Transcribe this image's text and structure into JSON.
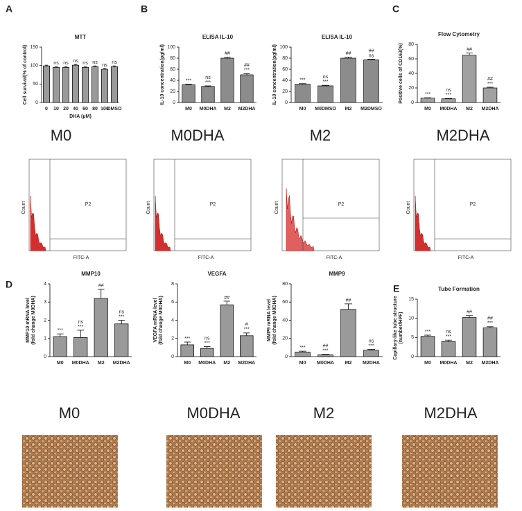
{
  "panels": [
    "A",
    "B",
    "C",
    "D",
    "E"
  ],
  "flow_labels": [
    "M0",
    "M0DHA",
    "M2",
    "M2DHA"
  ],
  "flow_axis": {
    "gate": "P2",
    "x_label": "FITC-A",
    "y_label": "Count"
  },
  "image_labels": [
    "M0",
    "M0DHA",
    "M2",
    "M2DHA"
  ],
  "chart_data": [
    {
      "type": "bar",
      "title": "MTT",
      "y_label": [
        "Cell survival(% of control)"
      ],
      "x_label": "DHA (μM)",
      "categories": [
        "0",
        "10",
        "20",
        "40",
        "60",
        "80",
        "100",
        "DMSO"
      ],
      "values": [
        99,
        95,
        95,
        101,
        95,
        97,
        90,
        97
      ],
      "errors": [
        2,
        2,
        2,
        2,
        2,
        2,
        2,
        2
      ],
      "annotations": [
        null,
        [
          "ns"
        ],
        [
          "ns"
        ],
        [
          "ns"
        ],
        [
          "ns"
        ],
        [
          "ns"
        ],
        [
          "ns"
        ],
        [
          "ns"
        ]
      ],
      "color": "#9a9a9a",
      "ylim": [
        0,
        150
      ],
      "yticks": [
        0,
        50,
        100,
        150
      ]
    },
    {
      "type": "bar",
      "title": "ELISA IL-10",
      "y_label": [
        "IL-10 concentration(pg/ml)"
      ],
      "categories": [
        "M0",
        "M0DHA",
        "M2",
        "M2DHA"
      ],
      "values": [
        32,
        29,
        80,
        50
      ],
      "errors": [
        1,
        1,
        2,
        2
      ],
      "annotations": [
        [
          "***"
        ],
        [
          "ns",
          "***"
        ],
        [
          "##"
        ],
        [
          "##",
          "***"
        ]
      ],
      "color": "#8c8c8c",
      "ylim": [
        0,
        100
      ],
      "yticks": [
        0,
        20,
        40,
        60,
        80,
        100
      ]
    },
    {
      "type": "bar",
      "title": "ELISA  IL-10",
      "y_label": [
        "IL-10 concentration(pg/ml)"
      ],
      "categories": [
        "M0",
        "M0DMSO",
        "M2",
        "M2DMSO"
      ],
      "values": [
        33,
        30,
        80,
        77
      ],
      "errors": [
        1,
        1,
        2,
        1
      ],
      "annotations": [
        [
          "***"
        ],
        [
          "ns",
          "***"
        ],
        [
          "##"
        ],
        [
          "##",
          "ns"
        ]
      ],
      "color": "#8c8c8c",
      "ylim": [
        0,
        100
      ],
      "yticks": [
        0,
        20,
        40,
        60,
        80,
        100
      ]
    },
    {
      "type": "bar",
      "title": "Flow Cytometry",
      "y_label": [
        "Positive cells of CD163(%)"
      ],
      "categories": [
        "M0",
        "M0DHA",
        "M2",
        "M2DHA"
      ],
      "values": [
        6,
        5,
        65,
        20
      ],
      "errors": [
        0.5,
        0.5,
        3,
        1
      ],
      "annotations": [
        [
          "***"
        ],
        [
          "ns",
          "***"
        ],
        [
          "##"
        ],
        [
          "##",
          "***"
        ]
      ],
      "color": "#a0a0a0",
      "ylim": [
        0,
        80
      ],
      "yticks": [
        0,
        20,
        40,
        60,
        80
      ]
    },
    {
      "type": "bar",
      "title": "MMP10",
      "y_label": [
        "MMP10 mRNA level",
        "(fold change M0DHA)"
      ],
      "categories": [
        "M0",
        "M0DHA",
        "M2",
        "M2DHA"
      ],
      "values": [
        1.1,
        1.05,
        3.2,
        1.8
      ],
      "errors": [
        0.15,
        0.4,
        0.5,
        0.2
      ],
      "annotations": [
        [
          "***"
        ],
        [
          "ns",
          "***"
        ],
        [
          "##"
        ],
        [
          "ns",
          "***"
        ]
      ],
      "color": "#9a9a9a",
      "ylim": [
        0,
        4
      ],
      "yticks": [
        0,
        1,
        2,
        3,
        4
      ]
    },
    {
      "type": "bar",
      "title": "VEGFA",
      "y_label": [
        "VEGFA mRNA level",
        "(fold change M0DHA)"
      ],
      "categories": [
        "M0",
        "M0DHA",
        "M2",
        "M2DHA"
      ],
      "values": [
        1.3,
        0.9,
        5.7,
        2.3
      ],
      "errors": [
        0.3,
        0.2,
        0.4,
        0.3
      ],
      "annotations": [
        [
          "***"
        ],
        [
          "ns",
          "***"
        ],
        [
          "##"
        ],
        [
          "#",
          "***"
        ]
      ],
      "color": "#9a9a9a",
      "ylim": [
        0,
        8
      ],
      "yticks": [
        0,
        2,
        4,
        6,
        8
      ]
    },
    {
      "type": "bar",
      "title": "MMP9",
      "y_label": [
        "MMP9 mRNA level",
        "(fold change M0DHA)"
      ],
      "categories": [
        "M0",
        "M0DHA",
        "M2",
        "M2DHA"
      ],
      "values": [
        5,
        2,
        52,
        7
      ],
      "errors": [
        1,
        0.5,
        6,
        1
      ],
      "annotations": [
        [
          "***"
        ],
        [
          "##",
          "***"
        ],
        [
          "##"
        ],
        [
          "ns",
          "***"
        ]
      ],
      "color": "#9a9a9a",
      "ylim": [
        0,
        80
      ],
      "yticks": [
        0,
        20,
        40,
        60,
        80
      ]
    },
    {
      "type": "bar",
      "title": "Tube Formation",
      "y_label": [
        "Capillary-like tube structure",
        "(number/HPF)"
      ],
      "categories": [
        "M0",
        "M0DHA",
        "M2",
        "M2DHA"
      ],
      "values": [
        5.3,
        3.9,
        10.2,
        7.5
      ],
      "errors": [
        0.3,
        0.4,
        0.5,
        0.3
      ],
      "annotations": [
        [
          "***"
        ],
        [
          "ns",
          "***"
        ],
        [
          "##"
        ],
        [
          "##",
          "***"
        ]
      ],
      "color": "#9a9a9a",
      "ylim": [
        0,
        15
      ],
      "yticks": [
        0,
        5,
        10,
        15
      ]
    }
  ]
}
